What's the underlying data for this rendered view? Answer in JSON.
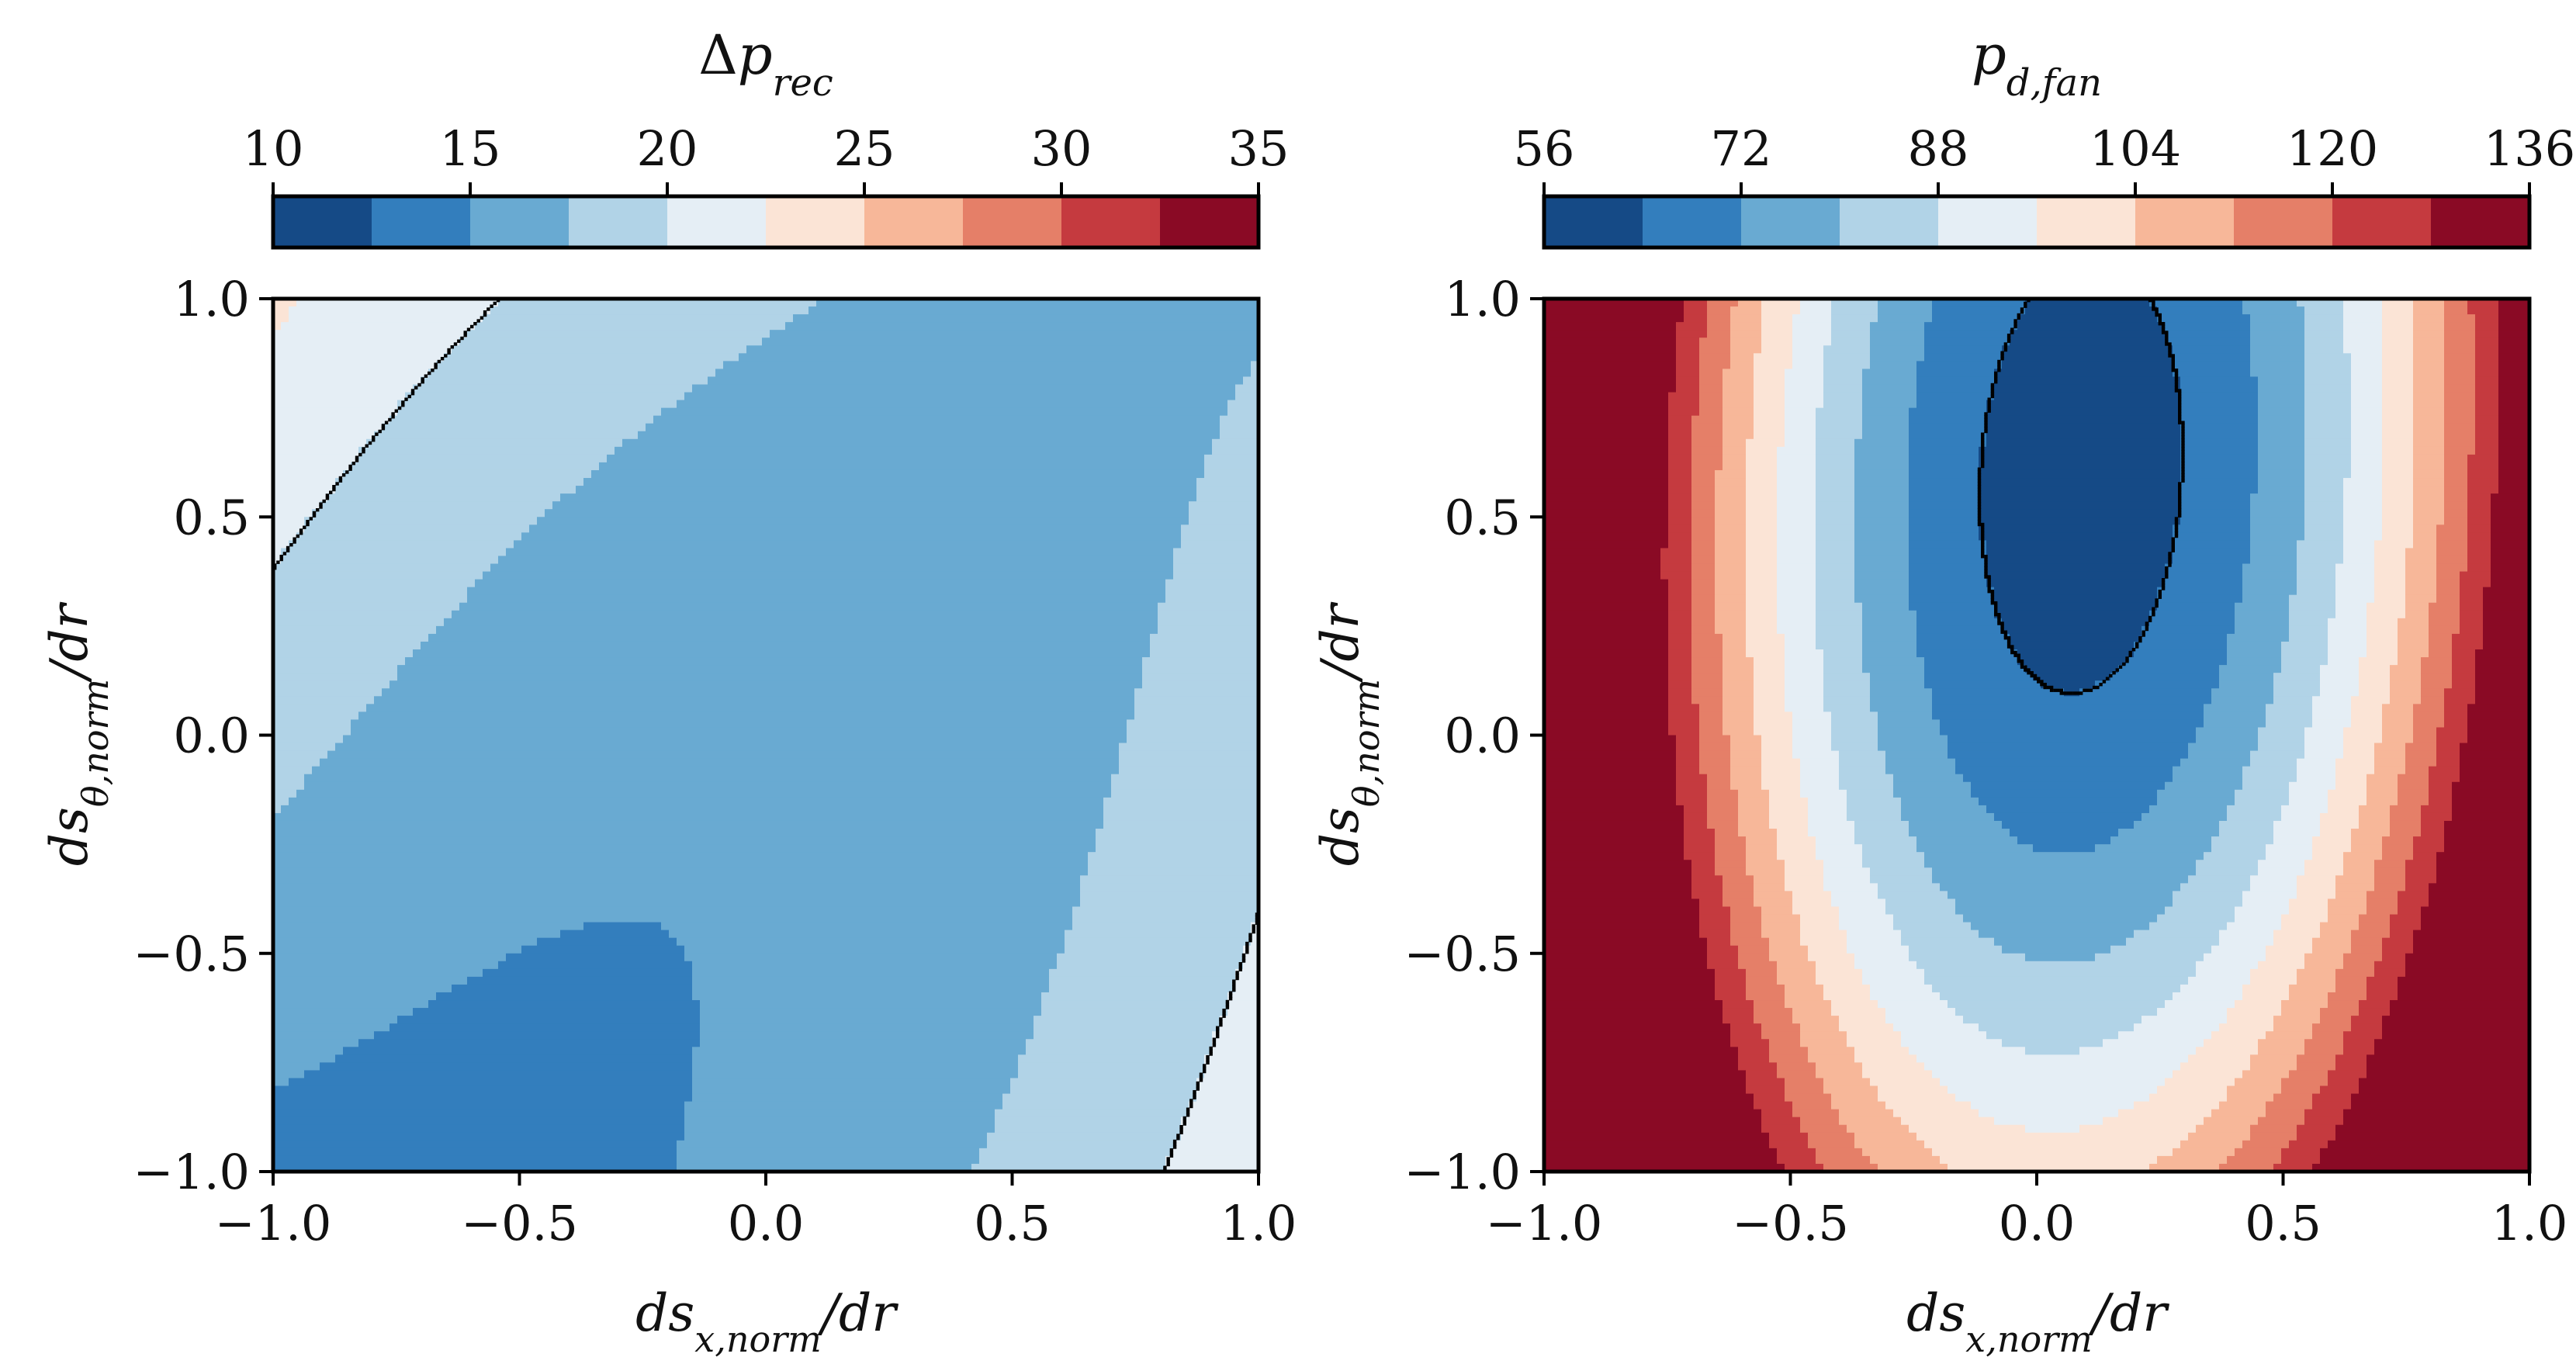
{
  "chart_data": [
    {
      "type": "contour",
      "title": "Δp_rec",
      "colorbar_label": "Δp_rec",
      "colorbar_ticks": [
        "10",
        "15",
        "20",
        "25",
        "30",
        "35"
      ],
      "levels": [
        10,
        12.5,
        15,
        17.5,
        20,
        22.5,
        25,
        27.5,
        30,
        32.5,
        35
      ],
      "highlighted_level": 20,
      "xlabel": "ds_x,norm/dr",
      "ylabel": "ds_θ,norm/dr",
      "xlim": [
        -1.0,
        1.0
      ],
      "ylim": [
        -1.0,
        1.0
      ],
      "xticks": [
        "−1.0",
        "−0.5",
        "0.0",
        "0.5",
        "1.0"
      ],
      "yticks": [
        "−1.0",
        "−0.5",
        "0.0",
        "0.5",
        "1.0"
      ],
      "colormap": [
        "#154a86",
        "#337ebd",
        "#69aad2",
        "#b1d3e7",
        "#e5eef5",
        "#fbe4d6",
        "#f7b799",
        "#e57f68",
        "#c53a3f",
        "#8a0a25"
      ]
    },
    {
      "type": "contour",
      "title": "p_d,fan",
      "colorbar_label": "p_d,fan",
      "colorbar_ticks": [
        "56",
        "72",
        "88",
        "104",
        "120",
        "136"
      ],
      "levels": [
        56,
        64,
        72,
        80,
        88,
        96,
        104,
        112,
        120,
        128,
        136
      ],
      "highlighted_level": 64,
      "xlabel": "ds_x,norm/dr",
      "ylabel": "ds_θ,norm/dr",
      "xlim": [
        -1.0,
        1.0
      ],
      "ylim": [
        -1.0,
        1.0
      ],
      "xticks": [
        "−1.0",
        "−0.5",
        "0.0",
        "0.5",
        "1.0"
      ],
      "yticks": [
        "−1.0",
        "−0.5",
        "0.0",
        "0.5",
        "1.0"
      ],
      "colormap": [
        "#154a86",
        "#337ebd",
        "#69aad2",
        "#b1d3e7",
        "#e5eef5",
        "#fbe4d6",
        "#f7b799",
        "#e57f68",
        "#c53a3f",
        "#8a0a25"
      ]
    }
  ]
}
